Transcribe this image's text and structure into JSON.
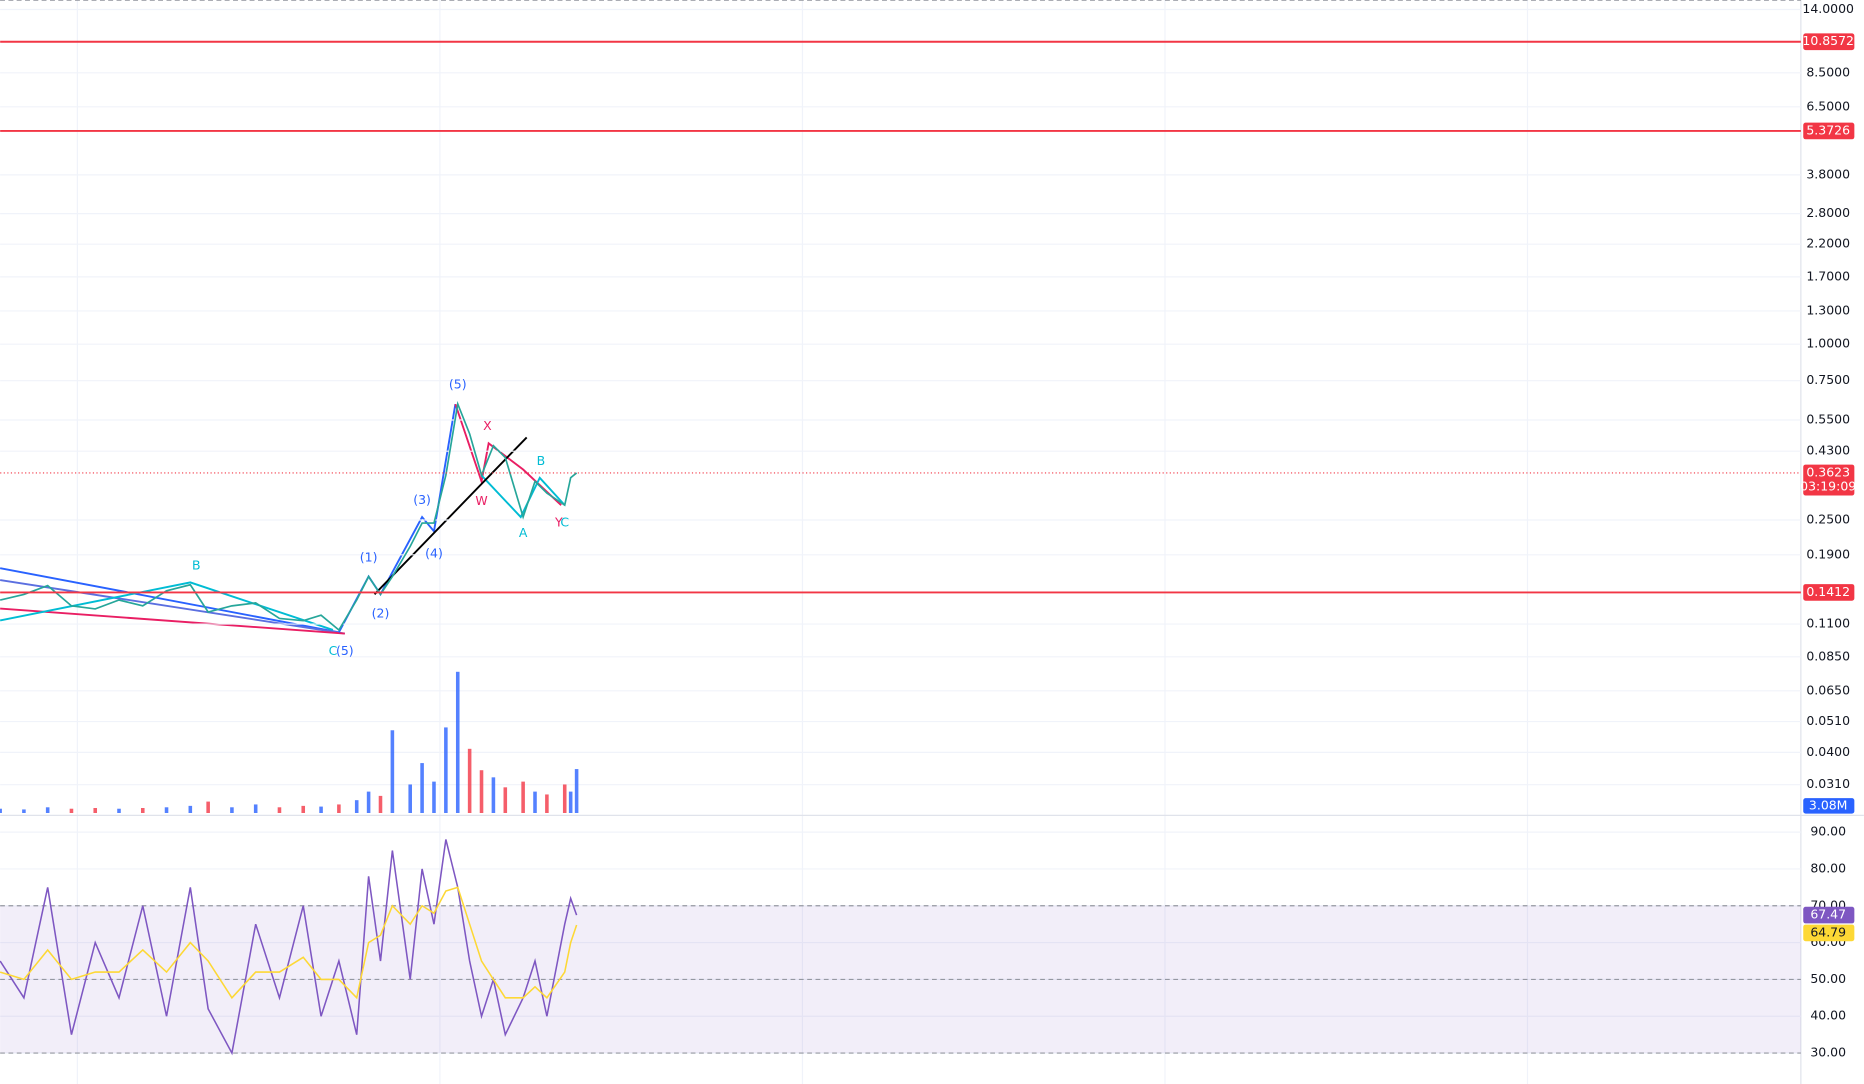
{
  "chart_data": [
    {
      "type": "line",
      "log_scale": true,
      "xlim": [
        0,
        303
      ],
      "ylim": [
        0.0248,
        15.09
      ],
      "grid": true,
      "yticks": [
        {
          "value": 14,
          "label": "14.0000"
        },
        {
          "value": 8.5,
          "label": "8.5000"
        },
        {
          "value": 6.5,
          "label": "6.5000"
        },
        {
          "value": 3.8,
          "label": "3.8000"
        },
        {
          "value": 2.8,
          "label": "2.8000"
        },
        {
          "value": 2.2,
          "label": "2.2000"
        },
        {
          "value": 1.7,
          "label": "1.7000"
        },
        {
          "value": 1.3,
          "label": "1.3000"
        },
        {
          "value": 1,
          "label": "1.0000"
        },
        {
          "value": 0.75,
          "label": "0.7500"
        },
        {
          "value": 0.55,
          "label": "0.5500"
        },
        {
          "value": 0.43,
          "label": "0.4300"
        },
        {
          "value": 0.25,
          "label": "0.2500"
        },
        {
          "value": 0.19,
          "label": "0.1900"
        },
        {
          "value": 0.11,
          "label": "0.1100"
        },
        {
          "value": 0.085,
          "label": "0.0850"
        },
        {
          "value": 0.065,
          "label": "0.0650"
        },
        {
          "value": 0.051,
          "label": "0.0510"
        },
        {
          "value": 0.04,
          "label": "0.0400"
        },
        {
          "value": 0.031,
          "label": "0.0310"
        }
      ],
      "x": [
        0,
        4,
        8,
        12,
        16,
        20,
        24,
        28,
        32,
        35,
        39,
        43,
        47,
        51,
        54,
        57,
        60,
        62,
        64,
        66,
        69,
        71,
        73,
        75,
        77,
        79,
        81,
        83,
        85,
        88,
        90,
        92,
        95,
        96,
        97
      ],
      "values": [
        0.133,
        0.139,
        0.149,
        0.127,
        0.124,
        0.133,
        0.127,
        0.143,
        0.15,
        0.121,
        0.127,
        0.13,
        0.115,
        0.113,
        0.118,
        0.105,
        0.133,
        0.16,
        0.139,
        0.16,
        0.203,
        0.244,
        0.244,
        0.356,
        0.624,
        0.493,
        0.356,
        0.449,
        0.409,
        0.256,
        0.339,
        0.309,
        0.281,
        0.349,
        0.3623
      ],
      "color": "#26a69a",
      "last_color": "#f23645",
      "countdown": "03:19:09",
      "levels": [
        {
          "value": 10.8572,
          "color": "#f23645"
        },
        {
          "value": 5.3726,
          "color": "#f23645"
        },
        {
          "value": 0.1412,
          "color": "#f23645"
        }
      ],
      "annotations": [
        {
          "text": "B",
          "x": 33,
          "price": 0.174,
          "color": "#00bcd4"
        },
        {
          "text": "C",
          "x": 56,
          "price": 0.0886,
          "color": "#00bcd4"
        },
        {
          "text": "(5)",
          "x": 58,
          "price": 0.0886,
          "color": "#2962ff"
        },
        {
          "text": "(1)",
          "x": 62,
          "price": 0.185,
          "color": "#2962ff"
        },
        {
          "text": "(2)",
          "x": 64,
          "price": 0.119,
          "color": "#2962ff"
        },
        {
          "text": "(3)",
          "x": 71,
          "price": 0.292,
          "color": "#2962ff"
        },
        {
          "text": "(4)",
          "x": 73,
          "price": 0.191,
          "color": "#2962ff"
        },
        {
          "text": "(5)",
          "x": 77,
          "price": 0.725,
          "color": "#2962ff"
        },
        {
          "text": "X",
          "x": 82,
          "price": 0.522,
          "color": "#e91e63"
        },
        {
          "text": "W",
          "x": 81,
          "price": 0.289,
          "color": "#e91e63"
        },
        {
          "text": "B",
          "x": 91,
          "price": 0.397,
          "color": "#00bcd4"
        },
        {
          "text": "A",
          "x": 88,
          "price": 0.225,
          "color": "#00bcd4"
        },
        {
          "text": "Y",
          "x": 94,
          "price": 0.244,
          "color": "#e91e63"
        },
        {
          "text": "C",
          "x": 95,
          "price": 0.244,
          "color": "#00bcd4"
        }
      ]
    },
    {
      "type": "bar",
      "xlim": [
        0,
        303
      ],
      "ylim": [
        0,
        12500000
      ],
      "x": [
        0,
        4,
        8,
        12,
        16,
        20,
        24,
        28,
        32,
        35,
        39,
        43,
        47,
        51,
        54,
        57,
        60,
        62,
        64,
        66,
        69,
        71,
        73,
        75,
        77,
        79,
        81,
        83,
        85,
        88,
        90,
        92,
        95,
        96,
        97
      ],
      "values": [
        300000,
        250000,
        400000,
        300000,
        350000,
        300000,
        350000,
        400000,
        500000,
        800000,
        400000,
        600000,
        400000,
        500000,
        450000,
        600000,
        900000,
        1500000,
        1200000,
        5800000,
        2000000,
        3500000,
        2200000,
        6000000,
        9900000,
        4500000,
        3000000,
        2500000,
        1800000,
        2200000,
        1500000,
        1300000,
        2000000,
        1500000,
        3080000
      ],
      "up_color": "#2962ff",
      "down_color": "#f23645",
      "last_value_label": "3.08M"
    },
    {
      "type": "line",
      "xlim": [
        0,
        303
      ],
      "ylim": [
        21.6,
        93.9
      ],
      "yticks": [
        {
          "value": 30,
          "label": "30.00"
        },
        {
          "value": 40,
          "label": "40.00"
        },
        {
          "value": 50,
          "label": "50.00"
        },
        {
          "value": 60,
          "label": "60.00"
        },
        {
          "value": 70,
          "label": "70.00"
        },
        {
          "value": 80,
          "label": "80.00"
        },
        {
          "value": 90,
          "label": "90.00"
        }
      ],
      "levels": [
        70,
        50,
        30
      ],
      "band_color": "#7e57c2",
      "x": [
        0,
        4,
        8,
        12,
        16,
        20,
        24,
        28,
        32,
        35,
        39,
        43,
        47,
        51,
        54,
        57,
        60,
        62,
        64,
        66,
        69,
        71,
        73,
        75,
        77,
        79,
        81,
        83,
        85,
        88,
        90,
        92,
        95,
        96,
        97
      ],
      "series": [
        {
          "color": "#7e57c2",
          "values": [
            55,
            45,
            75,
            35,
            60,
            45,
            70,
            40,
            75,
            42,
            30,
            65,
            45,
            70,
            40,
            55,
            35,
            78,
            55,
            85,
            50,
            80,
            65,
            88,
            75,
            55,
            40,
            50,
            35,
            45,
            55,
            40,
            65,
            72,
            67.47
          ]
        },
        {
          "color": "#fdd835",
          "values": [
            52,
            50,
            58,
            50,
            52,
            52,
            58,
            52,
            60,
            55,
            45,
            52,
            52,
            56,
            50,
            50,
            45,
            60,
            62,
            70,
            65,
            70,
            68,
            74,
            75,
            65,
            55,
            50,
            45,
            45,
            48,
            45,
            52,
            60,
            64.79
          ]
        }
      ]
    }
  ]
}
